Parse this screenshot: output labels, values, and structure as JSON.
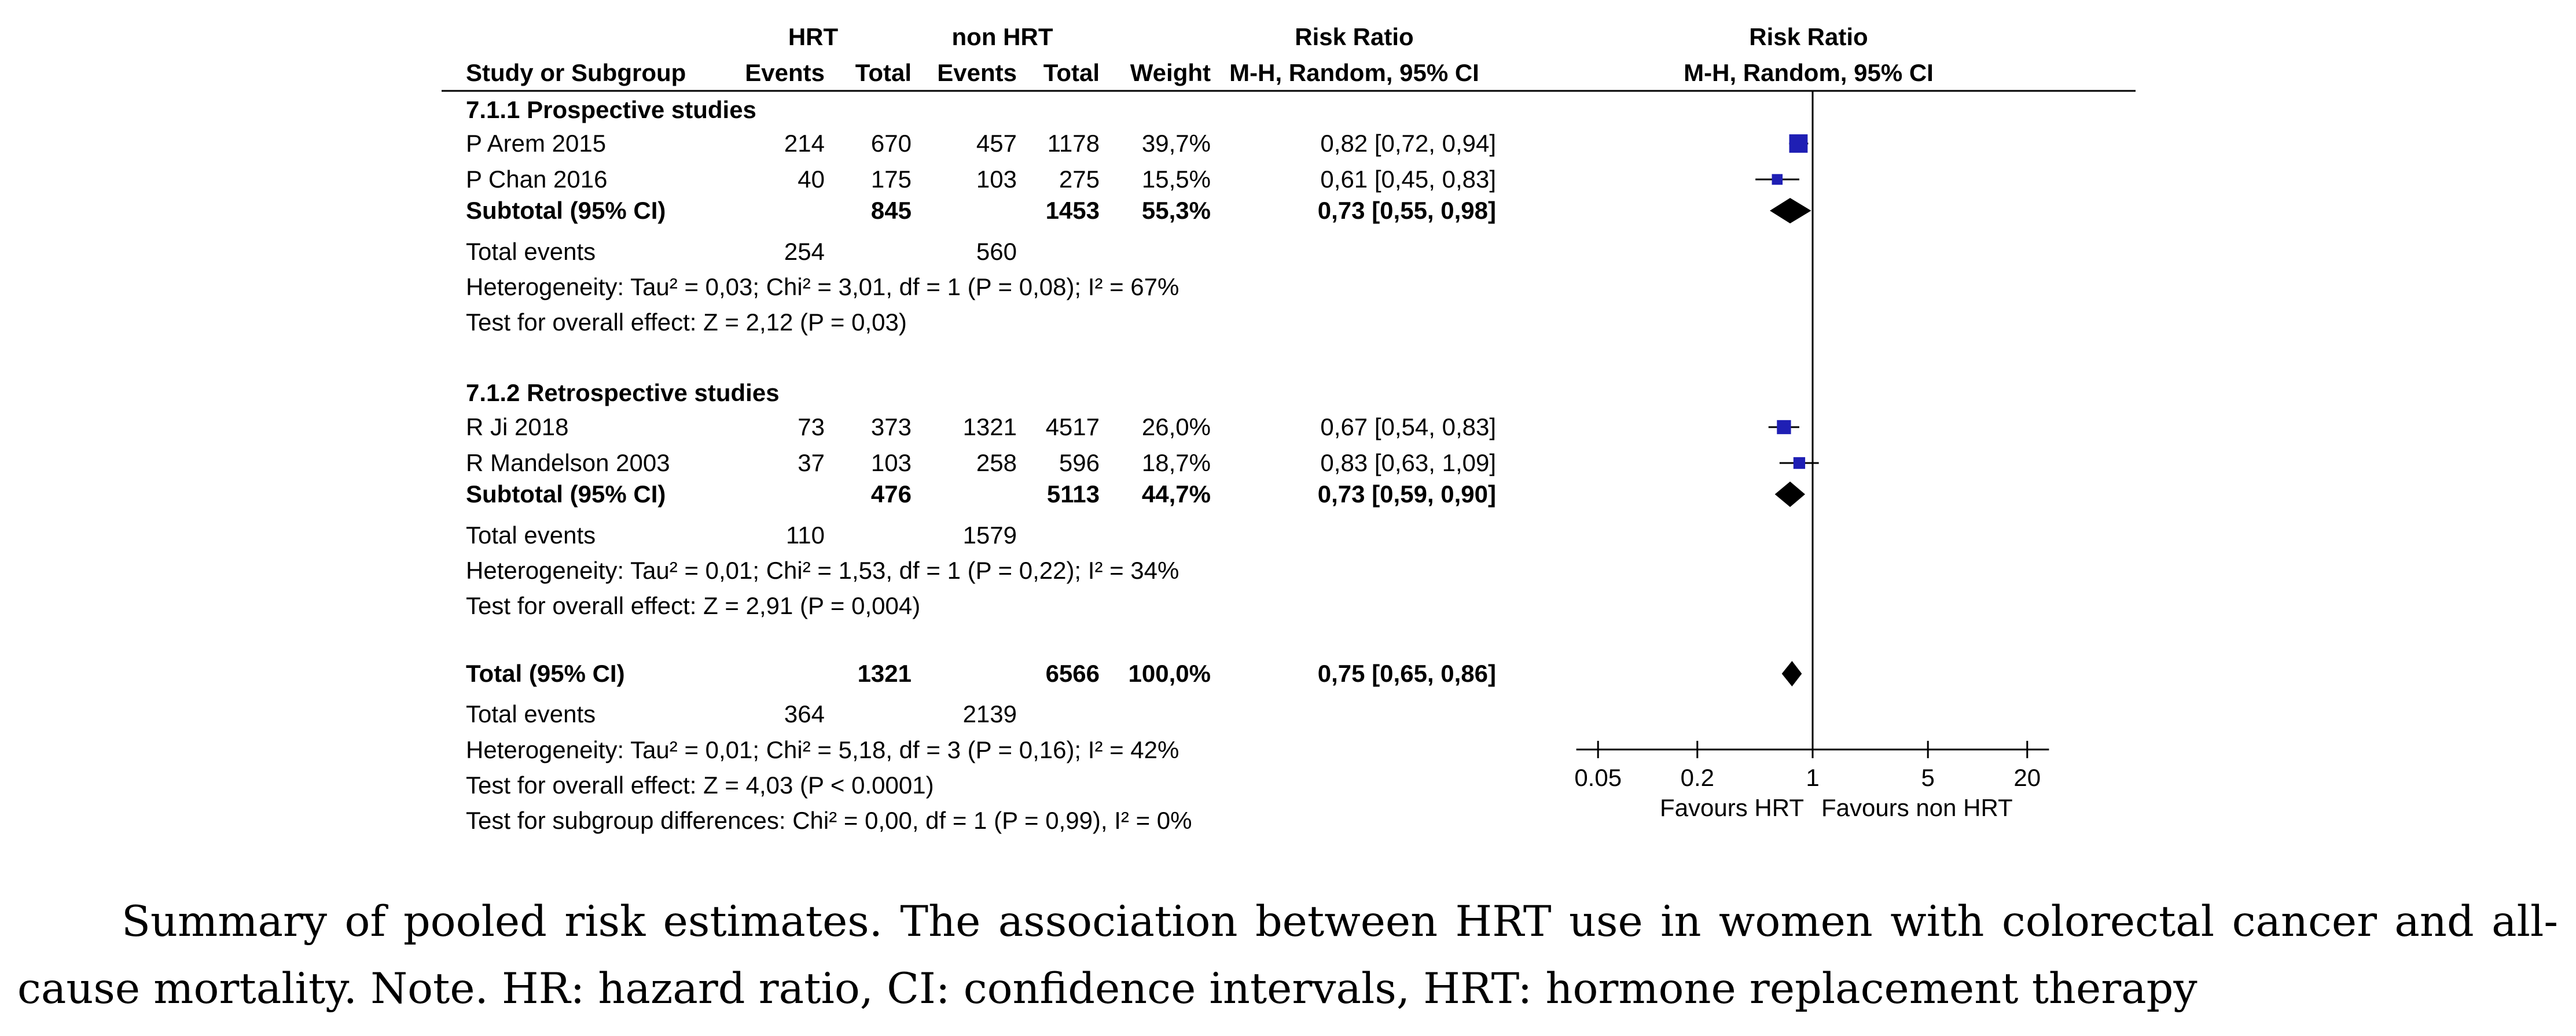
{
  "chart_data": {
    "type": "forest",
    "title": "Risk Ratio",
    "colors": {
      "study_marker": "#1f1fb4",
      "diamond": "#000000",
      "text": "#000000"
    },
    "header": {
      "group_hrt": "HRT",
      "group_non_hrt": "non HRT",
      "rr_table_title": "Risk Ratio",
      "rr_table_subtitle": "M-H, Random, 95% CI",
      "plot_title": "Risk Ratio",
      "plot_subtitle": "M-H, Random, 95% CI",
      "columns": [
        "Study or Subgroup",
        "Events",
        "Total",
        "Events",
        "Total",
        "Weight",
        "M-H, Random, 95% CI"
      ]
    },
    "x_axis": {
      "scale": "log",
      "ticks": [
        0.05,
        0.2,
        1,
        5,
        20
      ],
      "tick_labels": [
        "0.05",
        "0.2",
        "1",
        "5",
        "20"
      ],
      "range": [
        0.04,
        25
      ],
      "left_label": "Favours HRT",
      "right_label": "Favours non HRT"
    },
    "subgroups": [
      {
        "title": "7.1.1 Prospective studies",
        "studies": [
          {
            "name": "P Arem 2015",
            "events_hrt": "214",
            "total_hrt": "670",
            "events_non": "457",
            "total_non": "1178",
            "weight": "39,7%",
            "ci_text": "0,82 [0,72, 0,94]",
            "rr": 0.82,
            "lo": 0.72,
            "hi": 0.94,
            "w": 39.7
          },
          {
            "name": "P Chan 2016",
            "events_hrt": "40",
            "total_hrt": "175",
            "events_non": "103",
            "total_non": "275",
            "weight": "15,5%",
            "ci_text": "0,61 [0,45, 0,83]",
            "rr": 0.61,
            "lo": 0.45,
            "hi": 0.83,
            "w": 15.5
          }
        ],
        "subtotal": {
          "label": "Subtotal (95% CI)",
          "total_hrt": "845",
          "total_non": "1453",
          "weight": "55,3%",
          "ci_text": "0,73 [0,55, 0,98]",
          "rr": 0.73,
          "lo": 0.55,
          "hi": 0.98
        },
        "total_events": {
          "label": "Total events",
          "hrt": "254",
          "non": "560"
        },
        "heterogeneity": "Heterogeneity: Tau² = 0,03; Chi² = 3,01, df = 1 (P = 0,08); I² = 67%",
        "overall_effect": "Test for overall effect: Z = 2,12 (P = 0,03)"
      },
      {
        "title": "7.1.2 Retrospective studies",
        "studies": [
          {
            "name": "R Ji 2018",
            "events_hrt": "73",
            "total_hrt": "373",
            "events_non": "1321",
            "total_non": "4517",
            "weight": "26,0%",
            "ci_text": "0,67 [0,54, 0,83]",
            "rr": 0.67,
            "lo": 0.54,
            "hi": 0.83,
            "w": 26.0
          },
          {
            "name": "R Mandelson 2003",
            "events_hrt": "37",
            "total_hrt": "103",
            "events_non": "258",
            "total_non": "596",
            "weight": "18,7%",
            "ci_text": "0,83 [0,63, 1,09]",
            "rr": 0.83,
            "lo": 0.63,
            "hi": 1.09,
            "w": 18.7
          }
        ],
        "subtotal": {
          "label": "Subtotal (95% CI)",
          "total_hrt": "476",
          "total_non": "5113",
          "weight": "44,7%",
          "ci_text": "0,73 [0,59, 0,90]",
          "rr": 0.73,
          "lo": 0.59,
          "hi": 0.9
        },
        "total_events": {
          "label": "Total events",
          "hrt": "110",
          "non": "1579"
        },
        "heterogeneity": "Heterogeneity: Tau² = 0,01; Chi² = 1,53, df = 1 (P = 0,22); I² = 34%",
        "overall_effect": "Test for overall effect: Z = 2,91 (P = 0,004)"
      }
    ],
    "overall": {
      "label": "Total (95% CI)",
      "total_hrt": "1321",
      "total_non": "6566",
      "weight": "100,0%",
      "ci_text": "0,75 [0,65, 0,86]",
      "rr": 0.75,
      "lo": 0.65,
      "hi": 0.86,
      "total_events": {
        "label": "Total events",
        "hrt": "364",
        "non": "2139"
      },
      "heterogeneity": "Heterogeneity: Tau² = 0,01; Chi² = 5,18, df = 3 (P = 0,16); I² = 42%",
      "overall_effect": "Test for overall effect: Z = 4,03 (P < 0.0001)",
      "subgroup_differences": "Test for subgroup differences: Chi² = 0,00, df = 1 (P = 0,99), I² = 0%"
    }
  },
  "caption": {
    "line1": "Summary of pooled risk estimates. The association between HRT use in women with colorectal cancer and all-",
    "line2": "cause mortality. Note. HR: hazard ratio, CI: confidence intervals, HRT: hormone replacement therapy"
  }
}
